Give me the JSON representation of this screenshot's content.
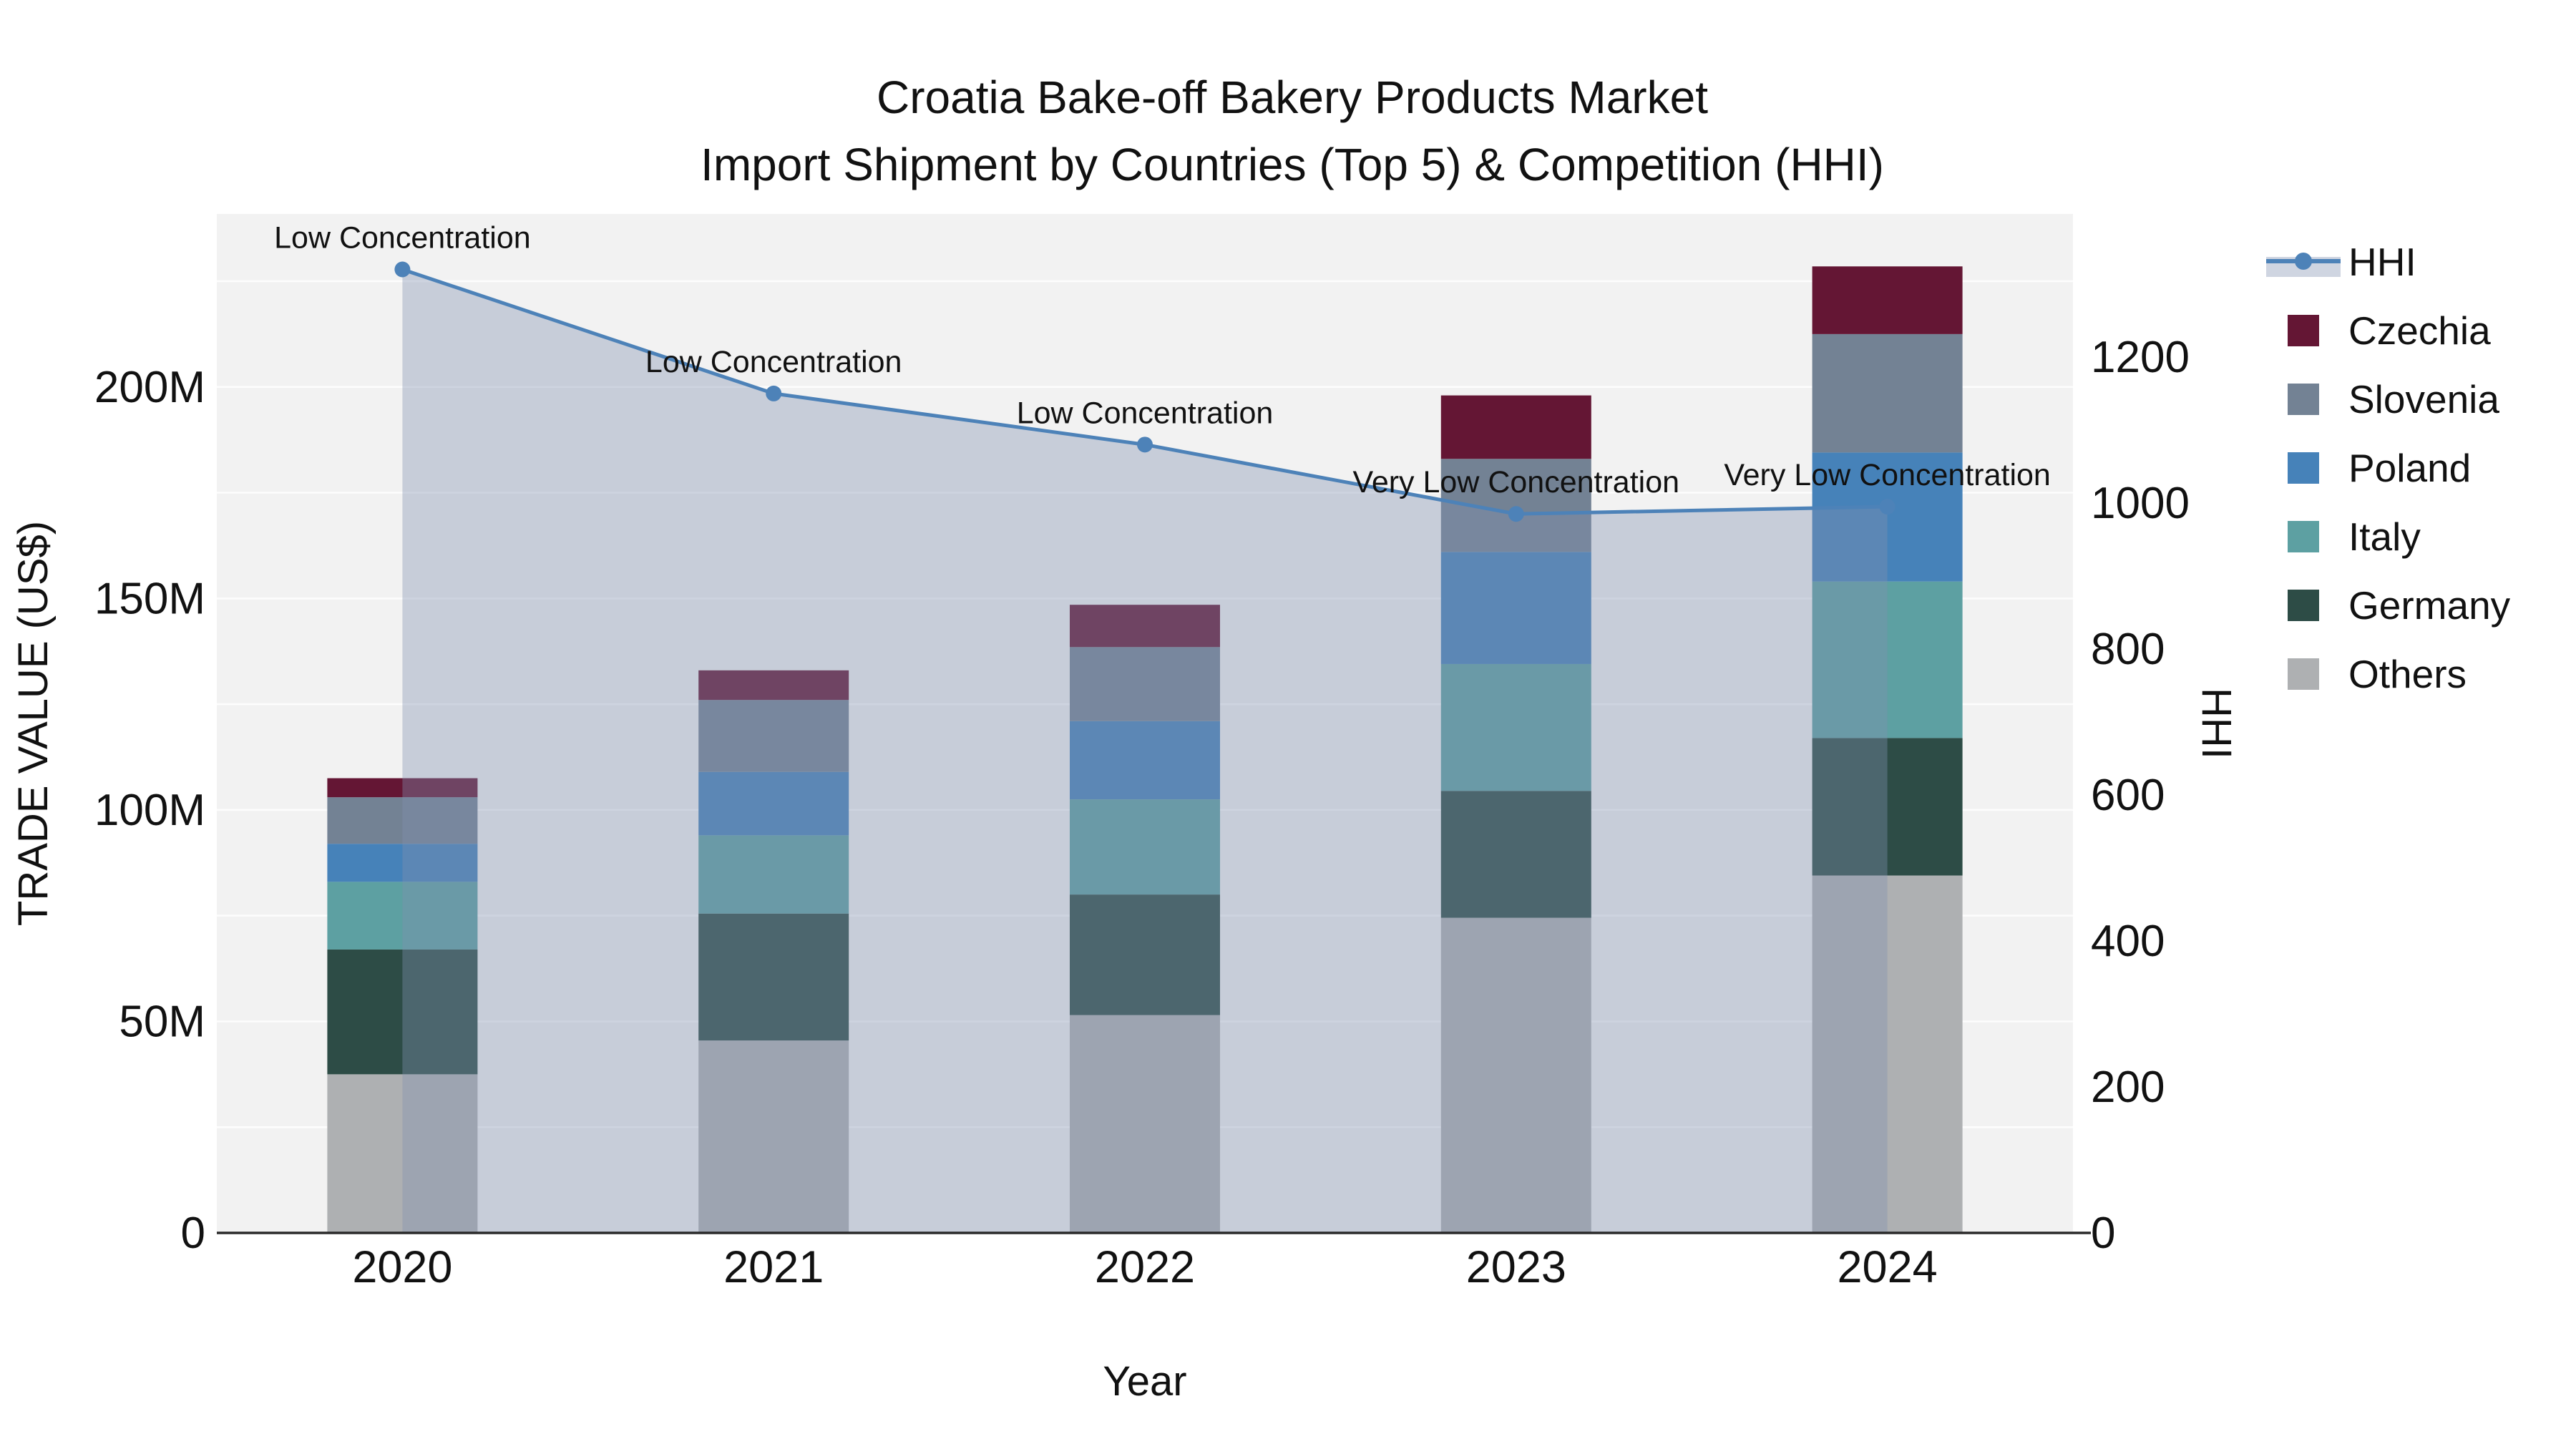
{
  "title": {
    "line1": "Croatia Bake-off Bakery Products Market",
    "line2": "Import Shipment by Countries (Top 5) & Competition (HHI)"
  },
  "axes": {
    "x_title": "Year",
    "y_left_title": "TRADE VALUE (US$)",
    "y_right_title": "HHI",
    "y_left_tick_labels": [
      "0",
      "50M",
      "100M",
      "150M",
      "200M"
    ],
    "y_left_tick_values": [
      0,
      50,
      100,
      150,
      200
    ],
    "y_right_tick_values": [
      0,
      200,
      400,
      600,
      800,
      1000,
      1200
    ],
    "y_left_max": 240.9,
    "y_right_max": 1396,
    "grid_step_left": 25
  },
  "chart_data": {
    "type": "bar",
    "subtype": "stacked-bars-with-line",
    "categories": [
      "2020",
      "2021",
      "2022",
      "2023",
      "2024"
    ],
    "title": "Croatia Bake-off Bakery Products Market — Import Shipment by Countries (Top 5) & Competition (HHI)",
    "xlabel": "Year",
    "ylabel_left": "TRADE VALUE (US$)",
    "ylabel_right": "HHI",
    "ylim_left": [
      0,
      240.9
    ],
    "ylim_right": [
      0,
      1396
    ],
    "grid": "horizontal-white",
    "legend_position": "right",
    "series": [
      {
        "name": "Others",
        "unit": "M US$",
        "color": "#aeb0b2",
        "values": [
          37.5,
          45.5,
          51.5,
          74.5,
          84.5
        ]
      },
      {
        "name": "Germany",
        "unit": "M US$",
        "color": "#2d4c46",
        "values": [
          29.5,
          30.0,
          28.5,
          30.0,
          32.5
        ]
      },
      {
        "name": "Italy",
        "unit": "M US$",
        "color": "#5da0a2",
        "values": [
          16.0,
          18.5,
          22.5,
          30.0,
          37.0
        ]
      },
      {
        "name": "Poland",
        "unit": "M US$",
        "color": "#4682b9",
        "values": [
          9.0,
          15.0,
          18.5,
          26.5,
          30.5
        ]
      },
      {
        "name": "Slovenia",
        "unit": "M US$",
        "color": "#738294",
        "values": [
          11.0,
          17.0,
          17.5,
          22.0,
          28.0
        ]
      },
      {
        "name": "Czechia",
        "unit": "M US$",
        "color": "#641634",
        "values": [
          4.5,
          7.0,
          10.0,
          15.0,
          16.0
        ]
      }
    ],
    "bar_totals": [
      107.5,
      133.0,
      148.5,
      198.0,
      228.5
    ],
    "line_series": {
      "name": "HHI",
      "color": "#4d82b8",
      "area_fill": "rgba(130,145,175,0.38)",
      "values": [
        1320,
        1150,
        1080,
        985,
        995
      ]
    },
    "annotations": [
      {
        "category": "2020",
        "text": "Low Concentration"
      },
      {
        "category": "2021",
        "text": "Low Concentration"
      },
      {
        "category": "2022",
        "text": "Low Concentration"
      },
      {
        "category": "2023",
        "text": "Very Low Concentration"
      },
      {
        "category": "2024",
        "text": "Very Low Concentration"
      }
    ],
    "legend_order": [
      "HHI",
      "Czechia",
      "Slovenia",
      "Poland",
      "Italy",
      "Germany",
      "Others"
    ]
  },
  "style": {
    "plot_bg": "#f2f2f2",
    "paper_bg": "#ffffff",
    "grid_color": "#ffffff",
    "axis_line_color": "#2a2a2a",
    "text_color": "#111111"
  }
}
